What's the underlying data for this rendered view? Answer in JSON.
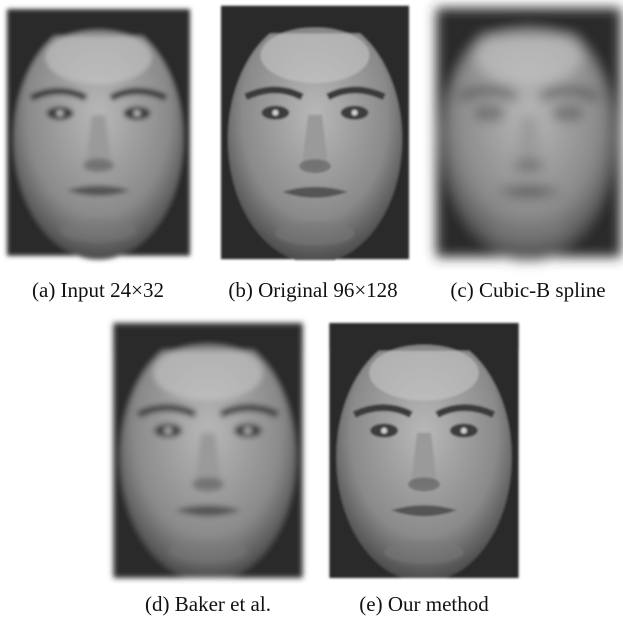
{
  "figure": {
    "panels": [
      {
        "caption": "(a) Input 24×32"
      },
      {
        "caption": "(b) Original 96×128"
      },
      {
        "caption": "(c) Cubic-B spline"
      },
      {
        "caption": "(d) Baker et al."
      },
      {
        "caption": "(e) Our method"
      }
    ]
  }
}
